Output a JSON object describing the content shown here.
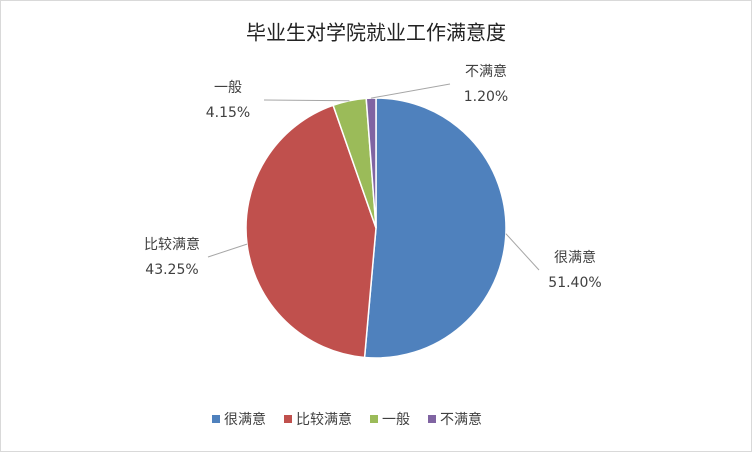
{
  "chart_data": {
    "type": "pie",
    "title": "毕业生对学院就业工作满意度",
    "categories": [
      "很满意",
      "比较满意",
      "一般",
      "不满意"
    ],
    "values": [
      51.4,
      43.25,
      4.15,
      1.2
    ],
    "value_labels": [
      "51.40%",
      "43.25%",
      "4.15%",
      "1.20%"
    ],
    "colors": [
      "#4f81bd",
      "#c0504d",
      "#9bbb59",
      "#8064a2"
    ],
    "legend": "bottom"
  }
}
